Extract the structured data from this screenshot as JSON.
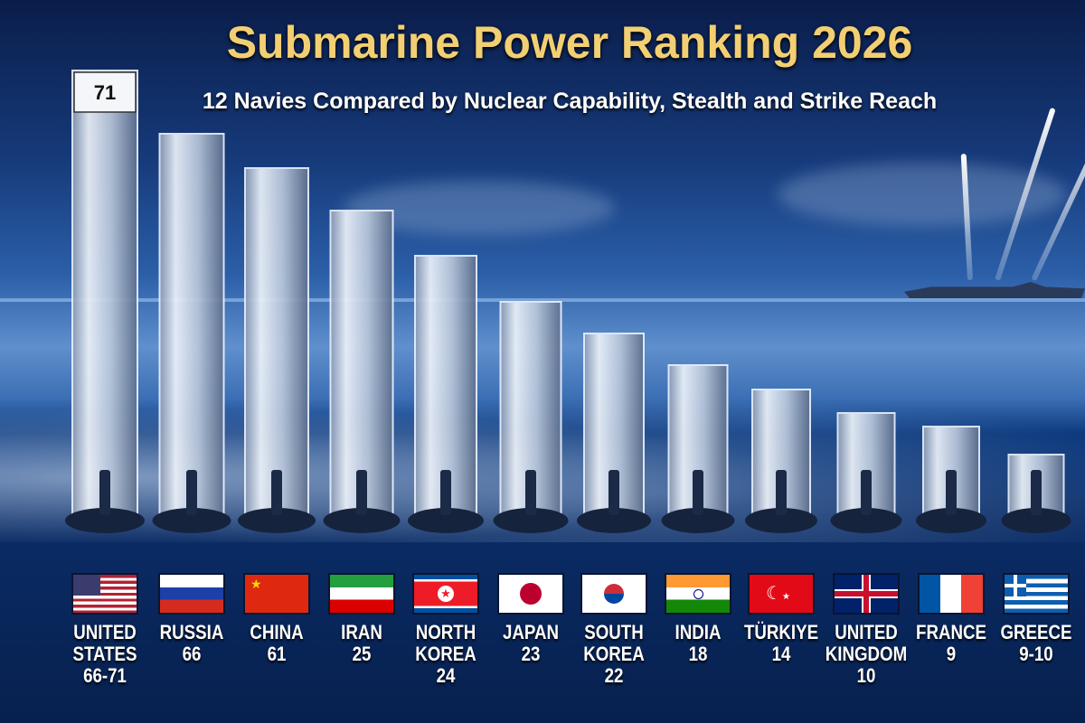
{
  "title": "Submarine Power Ranking 2026",
  "subtitle": "12 Navies Compared by Nuclear Capability, Stealth and Strike Reach",
  "chart_data": {
    "type": "bar",
    "title": "Submarine Power Ranking 2026",
    "subtitle": "12 Navies Compared by Nuclear Capability, Stealth and Strike Reach",
    "categories": [
      "United States",
      "Russia",
      "China",
      "Iran",
      "North Korea",
      "Japan",
      "South Korea",
      "India",
      "Türkiye",
      "United Kingdom",
      "France",
      "Greece"
    ],
    "values": [
      71,
      66,
      61,
      25,
      24,
      23,
      22,
      18,
      14,
      10,
      9,
      10
    ],
    "value_labels": [
      "66-71",
      "66",
      "61",
      "25",
      "24",
      "23",
      "22",
      "18",
      "14",
      "10",
      "9",
      "9-10"
    ],
    "top_bar_label": "71",
    "grid": false,
    "legend": "none"
  },
  "countries": [
    {
      "line1": "UNITED",
      "line2": "STATES",
      "value": "66-71",
      "flag": "us"
    },
    {
      "line1": "RUSSIA",
      "line2": "",
      "value": "66",
      "flag": "ru"
    },
    {
      "line1": "CHINA",
      "line2": "",
      "value": "61",
      "flag": "cn"
    },
    {
      "line1": "IRAN",
      "line2": "",
      "value": "25",
      "flag": "ir"
    },
    {
      "line1": "NORTH",
      "line2": "KOREA",
      "value": "24",
      "flag": "kp"
    },
    {
      "line1": "JAPAN",
      "line2": "",
      "value": "23",
      "flag": "jp"
    },
    {
      "line1": "SOUTH",
      "line2": "KOREA",
      "value": "22",
      "flag": "kr"
    },
    {
      "line1": "INDIA",
      "line2": "",
      "value": "18",
      "flag": "in"
    },
    {
      "line1": "TÜRKIYE",
      "line2": "",
      "value": "14",
      "flag": "tr"
    },
    {
      "line1": "UNITED",
      "line2": "KINGDOM",
      "value": "10",
      "flag": "gb"
    },
    {
      "line1": "FRANCE",
      "line2": "",
      "value": "9",
      "flag": "fr"
    },
    {
      "line1": "GREECE",
      "line2": "",
      "value": "9-10",
      "flag": "gr"
    }
  ],
  "colors": {
    "title": "#f2cf72",
    "bar": "#c8d4e4",
    "sea": "#0a2c66"
  }
}
